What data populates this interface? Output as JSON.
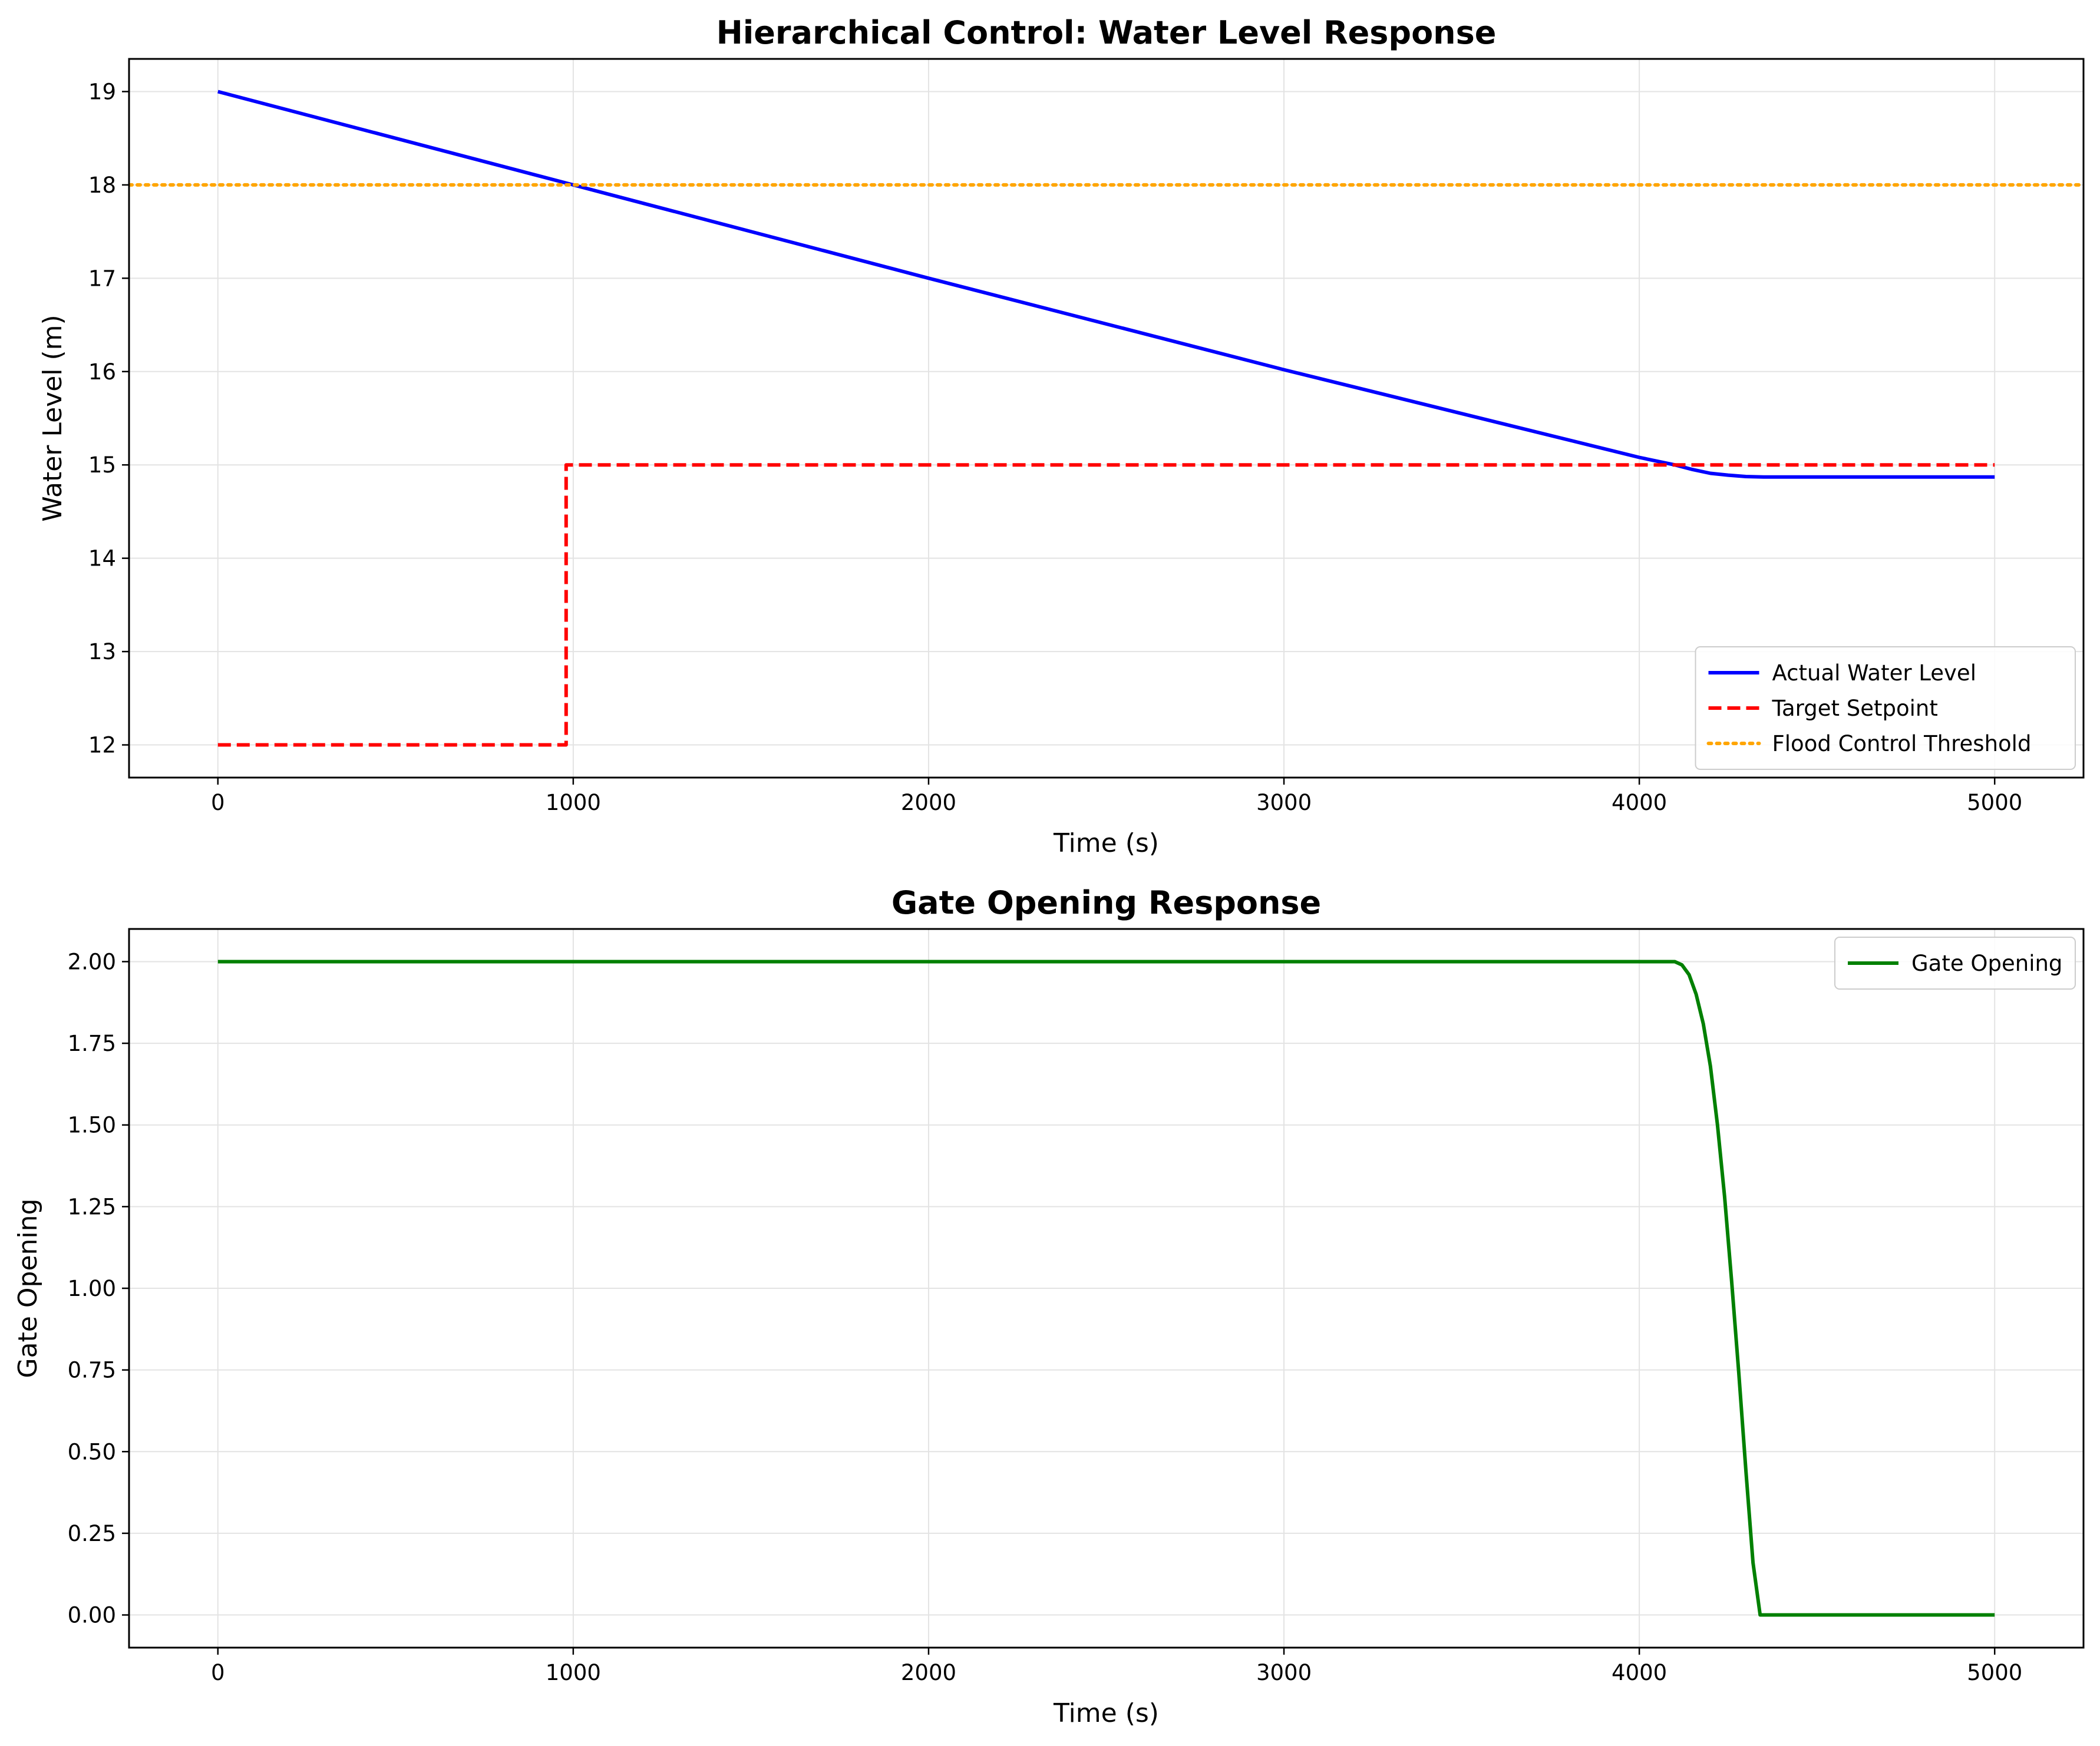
{
  "chart_data": [
    {
      "type": "line",
      "title": "Hierarchical Control: Water Level Response",
      "xlabel": "Time (s)",
      "ylabel": "Water Level (m)",
      "xlim": [
        -250,
        5250
      ],
      "ylim": [
        11.65,
        19.35
      ],
      "xticks": [
        0,
        1000,
        2000,
        3000,
        4000,
        5000
      ],
      "xtick_labels": [
        "0",
        "1000",
        "2000",
        "3000",
        "4000",
        "5000"
      ],
      "yticks": [
        12,
        13,
        14,
        15,
        16,
        17,
        18,
        19
      ],
      "ytick_labels": [
        "12",
        "13",
        "14",
        "15",
        "16",
        "17",
        "18",
        "19"
      ],
      "grid": true,
      "legend_position": "lower-right",
      "series": [
        {
          "name": "Actual Water Level",
          "color": "#0000ff",
          "style": "solid",
          "x": [
            0,
            1000,
            2000,
            3000,
            4000,
            4100,
            4150,
            4200,
            4250,
            4300,
            4350,
            4400,
            5000
          ],
          "y": [
            19.0,
            18.0,
            17.0,
            16.02,
            15.08,
            15.0,
            14.95,
            14.91,
            14.89,
            14.875,
            14.87,
            14.87,
            14.87
          ]
        },
        {
          "name": "Target Setpoint",
          "color": "#ff0000",
          "style": "dashed",
          "x": [
            0,
            980,
            980,
            5000
          ],
          "y": [
            12,
            12,
            15,
            15
          ]
        },
        {
          "name": "Flood Control Threshold",
          "color": "#ffa500",
          "style": "dotted",
          "x": [
            -250,
            5250
          ],
          "y": [
            18,
            18
          ]
        }
      ]
    },
    {
      "type": "line",
      "title": "Gate Opening Response",
      "xlabel": "Time (s)",
      "ylabel": "Gate Opening",
      "xlim": [
        -250,
        5250
      ],
      "ylim": [
        -0.1,
        2.1
      ],
      "xticks": [
        0,
        1000,
        2000,
        3000,
        4000,
        5000
      ],
      "xtick_labels": [
        "0",
        "1000",
        "2000",
        "3000",
        "4000",
        "5000"
      ],
      "yticks": [
        0,
        0.25,
        0.5,
        0.75,
        1.0,
        1.25,
        1.5,
        1.75,
        2.0
      ],
      "ytick_labels": [
        "0.00",
        "0.25",
        "0.50",
        "0.75",
        "1.00",
        "1.25",
        "1.50",
        "1.75",
        "2.00"
      ],
      "grid": true,
      "legend_position": "upper-right",
      "series": [
        {
          "name": "Gate Opening",
          "color": "#008000",
          "style": "solid",
          "x": [
            0,
            4100,
            4120,
            4140,
            4160,
            4180,
            4200,
            4220,
            4240,
            4260,
            4280,
            4300,
            4320,
            4340,
            5000
          ],
          "y": [
            2.0,
            2.0,
            1.99,
            1.96,
            1.9,
            1.81,
            1.68,
            1.5,
            1.28,
            1.02,
            0.74,
            0.44,
            0.16,
            0.0,
            0.0
          ]
        }
      ]
    }
  ]
}
